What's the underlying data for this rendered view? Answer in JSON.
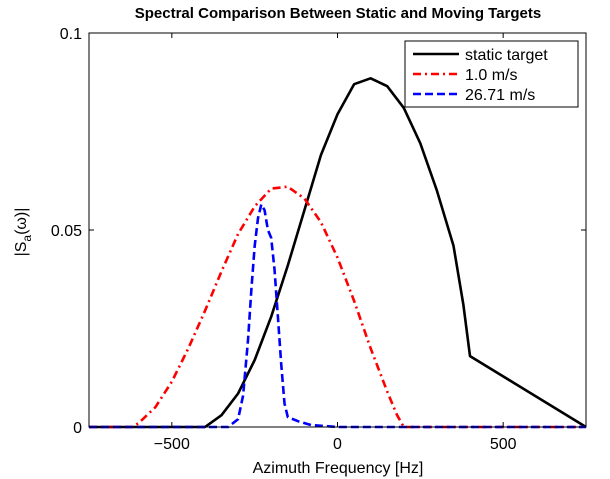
{
  "chart_data": {
    "type": "line",
    "title": "Spectral Comparison Between Static and Moving Targets",
    "xlabel": "Azimuth Frequency [Hz]",
    "ylabel": "|S_a(ω)|",
    "xlim": [
      -750,
      750
    ],
    "ylim": [
      0,
      0.1
    ],
    "xticks": [
      -500,
      0,
      500
    ],
    "xtick_labels": [
      "−500",
      "0",
      "500"
    ],
    "yticks": [
      0,
      0.05,
      0.1
    ],
    "ytick_labels": [
      "0",
      "0.05",
      "0.1"
    ],
    "grid": false,
    "legend_position": "top-right",
    "series": [
      {
        "name": "static target",
        "color": "#000000",
        "style": "solid",
        "x": [
          -750,
          -400,
          -380,
          -350,
          -300,
          -250,
          -200,
          -150,
          -100,
          -50,
          0,
          50,
          100,
          150,
          200,
          250,
          300,
          350,
          380,
          400,
          750
        ],
        "y": [
          0,
          0,
          0.0012,
          0.003,
          0.0085,
          0.017,
          0.028,
          0.041,
          0.055,
          0.069,
          0.0794,
          0.087,
          0.0885,
          0.0865,
          0.081,
          0.072,
          0.06,
          0.046,
          0.031,
          0.018,
          0
        ]
      },
      {
        "name": "1.0 m/s",
        "color": "#ff0000",
        "style": "dashdot",
        "x": [
          -750,
          -620,
          -600,
          -550,
          -500,
          -450,
          -400,
          -350,
          -300,
          -250,
          -200,
          -150,
          -100,
          -50,
          0,
          50,
          100,
          150,
          180,
          200,
          750
        ],
        "y": [
          0,
          0,
          0.001,
          0.005,
          0.0115,
          0.02,
          0.0295,
          0.0395,
          0.049,
          0.056,
          0.0605,
          0.061,
          0.058,
          0.052,
          0.043,
          0.032,
          0.02,
          0.009,
          0.003,
          0,
          0
        ]
      },
      {
        "name": "26.71 m/s",
        "color": "#0000ff",
        "style": "dashed",
        "x": [
          -750,
          -330,
          -300,
          -285,
          -270,
          -260,
          -250,
          -240,
          -230,
          -220,
          -210,
          -200,
          -190,
          -180,
          -170,
          -160,
          -150,
          -120,
          -80,
          0,
          750
        ],
        "y": [
          0,
          0,
          0.002,
          0.008,
          0.022,
          0.035,
          0.046,
          0.053,
          0.0565,
          0.055,
          0.05,
          0.048,
          0.04,
          0.028,
          0.016,
          0.006,
          0.0025,
          0.0015,
          0.0005,
          0,
          0
        ]
      }
    ]
  }
}
